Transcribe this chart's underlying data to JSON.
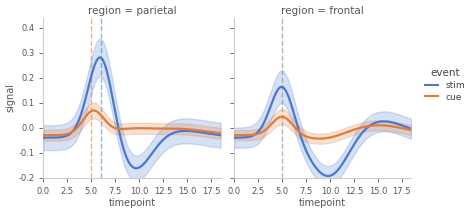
{
  "title_left": "region = parietal",
  "title_right": "region = frontal",
  "xlabel": "timepoint",
  "ylabel": "signal",
  "legend_title": "event",
  "legend_labels": [
    "stim",
    "cue"
  ],
  "stim_color": "#4878CF",
  "cue_color": "#E07B3A",
  "vline_color_gray": "#aaaaaa",
  "vline_color_orange": "#E8A87C",
  "vline_color_blue": "#7aaed6",
  "ylim": [
    -0.2,
    0.44
  ],
  "xlim": [
    0.0,
    18.5
  ],
  "xticks": [
    0.0,
    2.5,
    5.0,
    7.5,
    10.0,
    12.5,
    15.0,
    17.5
  ],
  "vline_stim_parietal": 6.0,
  "vline_cue_parietal": 5.0,
  "vline_frontal": 5.0,
  "background_color": "#ffffff",
  "figsize": [
    4.74,
    2.14
  ],
  "dpi": 100
}
